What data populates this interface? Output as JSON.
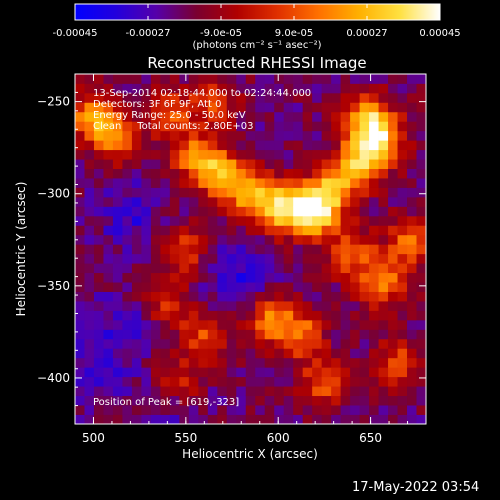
{
  "chart_data": {
    "type": "heatmap",
    "title": "Reconstructed RHESSI Image",
    "xlabel": "Heliocentric X (arcsec)",
    "ylabel": "Heliocentric Y (arcsec)",
    "xlim": [
      490,
      680
    ],
    "ylim": [
      -425,
      -235
    ],
    "x_ticks": [
      500,
      550,
      600,
      650
    ],
    "y_ticks": [
      -400,
      -350,
      -300,
      -250
    ],
    "colorbar": {
      "range": [
        -0.00045,
        0.00045
      ],
      "tick_values": [
        -0.00045,
        -0.00027,
        -9e-05,
        9e-05,
        0.00027,
        0.00045
      ],
      "tick_labels": [
        "-0.00045",
        "-0.00027",
        "-9.0e-05",
        "9.0e-05",
        "0.00027",
        "0.00045"
      ],
      "unit_label": "(photons cm⁻² s⁻¹ asec⁻²)",
      "colors": [
        "#0000ff",
        "#2200dd",
        "#5500aa",
        "#7a0030",
        "#b00000",
        "#e03000",
        "#ff7000",
        "#ffb000",
        "#ffe040",
        "#ffffff"
      ]
    },
    "peak": [
      619,
      -323
    ],
    "hot_spots": [
      {
        "x": 620,
        "y": -310,
        "w": 1.0
      },
      {
        "x": 603,
        "y": -308,
        "w": 0.85
      },
      {
        "x": 586,
        "y": -300,
        "w": 0.75
      },
      {
        "x": 570,
        "y": -290,
        "w": 0.7
      },
      {
        "x": 556,
        "y": -280,
        "w": 0.65
      },
      {
        "x": 630,
        "y": -296,
        "w": 0.7
      },
      {
        "x": 645,
        "y": -282,
        "w": 0.75
      },
      {
        "x": 655,
        "y": -270,
        "w": 0.8
      },
      {
        "x": 648,
        "y": -258,
        "w": 0.65
      },
      {
        "x": 500,
        "y": -258,
        "w": 0.75
      },
      {
        "x": 512,
        "y": -270,
        "w": 0.55
      },
      {
        "x": 540,
        "y": -256,
        "w": 0.5
      },
      {
        "x": 565,
        "y": -250,
        "w": 0.45
      },
      {
        "x": 548,
        "y": -330,
        "w": 0.45
      },
      {
        "x": 640,
        "y": -332,
        "w": 0.55
      },
      {
        "x": 657,
        "y": -348,
        "w": 0.6
      },
      {
        "x": 672,
        "y": -326,
        "w": 0.55
      },
      {
        "x": 596,
        "y": -368,
        "w": 0.6
      },
      {
        "x": 612,
        "y": -376,
        "w": 0.55
      },
      {
        "x": 625,
        "y": -402,
        "w": 0.5
      },
      {
        "x": 560,
        "y": -378,
        "w": 0.45
      },
      {
        "x": 540,
        "y": -360,
        "w": 0.4
      },
      {
        "x": 545,
        "y": -402,
        "w": 0.4
      },
      {
        "x": 665,
        "y": -392,
        "w": 0.45
      }
    ],
    "cold_spots": [
      {
        "x": 580,
        "y": -345,
        "w": 0.6
      },
      {
        "x": 520,
        "y": -312,
        "w": 0.5
      },
      {
        "x": 515,
        "y": -372,
        "w": 0.45
      },
      {
        "x": 500,
        "y": -395,
        "w": 0.4
      },
      {
        "x": 540,
        "y": -412,
        "w": 0.35
      }
    ]
  },
  "overlay": {
    "time_range": "13-Sep-2014 02:18:44.000 to 02:24:44.000",
    "detectors": "Detectors: 3F 6F 9F, Att 0",
    "energy_range": "Energy Range: 25.0 - 50.0 keV",
    "clean_counts": "Clean     Total counts: 2.80E+03",
    "peak_position": "Position of Peak = [619,-323]"
  },
  "timestamp": "17-May-2022 03:54"
}
